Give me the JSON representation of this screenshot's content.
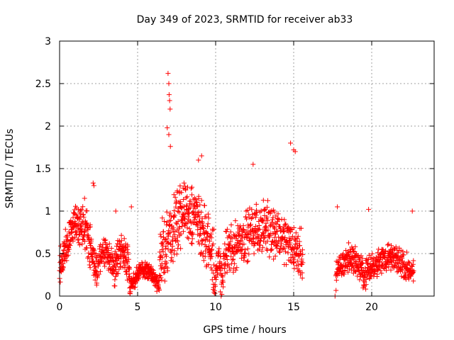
{
  "chart_data": {
    "type": "scatter",
    "title": "Day 349 of 2023, SRMTID for receiver ab33",
    "xlabel": "GPS time / hours",
    "ylabel": "SRMTID / TECUs",
    "xlim": [
      0,
      24
    ],
    "ylim": [
      0,
      3
    ],
    "xticks": [
      0,
      5,
      10,
      15,
      20
    ],
    "yticks": [
      0,
      0.5,
      1,
      1.5,
      2,
      2.5,
      3
    ],
    "xtick_labels": [
      "0",
      "5",
      "10",
      "15",
      "20"
    ],
    "ytick_labels": [
      "0",
      "0.5",
      "1",
      "1.5",
      "2",
      "2.5",
      "3"
    ],
    "grid": true,
    "marker": "+",
    "color": "#ff0000",
    "segments": [
      {
        "x_start": 0.0,
        "x_end": 2.4,
        "base": 0.3,
        "peak": 0.85,
        "noise": 0.3,
        "count": 230
      },
      {
        "x_start": 2.4,
        "x_end": 3.5,
        "base": 0.3,
        "peak": 0.5,
        "noise": 0.2,
        "count": 90
      },
      {
        "x_start": 3.5,
        "x_end": 4.5,
        "base": 0.3,
        "peak": 0.55,
        "noise": 0.25,
        "count": 100
      },
      {
        "x_start": 4.5,
        "x_end": 6.4,
        "base": 0.1,
        "peak": 0.3,
        "noise": 0.12,
        "count": 180
      },
      {
        "x_start": 6.4,
        "x_end": 9.9,
        "base": 0.4,
        "peak": 1.0,
        "noise": 0.45,
        "count": 330
      },
      {
        "x_start": 9.9,
        "x_end": 10.5,
        "base": 0.1,
        "peak": 0.4,
        "noise": 0.2,
        "count": 50
      },
      {
        "x_start": 10.5,
        "x_end": 15.6,
        "base": 0.45,
        "peak": 0.8,
        "noise": 0.35,
        "count": 430
      },
      {
        "x_start": 17.7,
        "x_end": 19.5,
        "base": 0.25,
        "peak": 0.45,
        "noise": 0.2,
        "count": 160
      },
      {
        "x_start": 19.5,
        "x_end": 22.7,
        "base": 0.25,
        "peak": 0.45,
        "noise": 0.2,
        "count": 280
      }
    ],
    "outliers": [
      {
        "x": 6.95,
        "y": 2.62
      },
      {
        "x": 7.0,
        "y": 2.5
      },
      {
        "x": 7.02,
        "y": 2.37
      },
      {
        "x": 7.05,
        "y": 2.3
      },
      {
        "x": 7.08,
        "y": 2.2
      },
      {
        "x": 6.9,
        "y": 1.98
      },
      {
        "x": 7.0,
        "y": 1.9
      },
      {
        "x": 7.1,
        "y": 1.76
      },
      {
        "x": 9.1,
        "y": 1.65
      },
      {
        "x": 14.8,
        "y": 1.8
      },
      {
        "x": 15.0,
        "y": 1.72
      },
      {
        "x": 15.1,
        "y": 1.7
      },
      {
        "x": 12.4,
        "y": 1.55
      },
      {
        "x": 8.9,
        "y": 1.6
      },
      {
        "x": 2.15,
        "y": 1.33
      },
      {
        "x": 2.2,
        "y": 1.3
      },
      {
        "x": 1.6,
        "y": 1.15
      },
      {
        "x": 4.6,
        "y": 1.05
      },
      {
        "x": 17.8,
        "y": 1.05
      },
      {
        "x": 22.6,
        "y": 1.0
      },
      {
        "x": 19.8,
        "y": 1.02
      },
      {
        "x": 3.6,
        "y": 1.0
      },
      {
        "x": 10.35,
        "y": 0.0
      },
      {
        "x": 10.4,
        "y": 0.02
      },
      {
        "x": 10.3,
        "y": 0.05
      },
      {
        "x": 17.65,
        "y": 0.0
      }
    ]
  }
}
